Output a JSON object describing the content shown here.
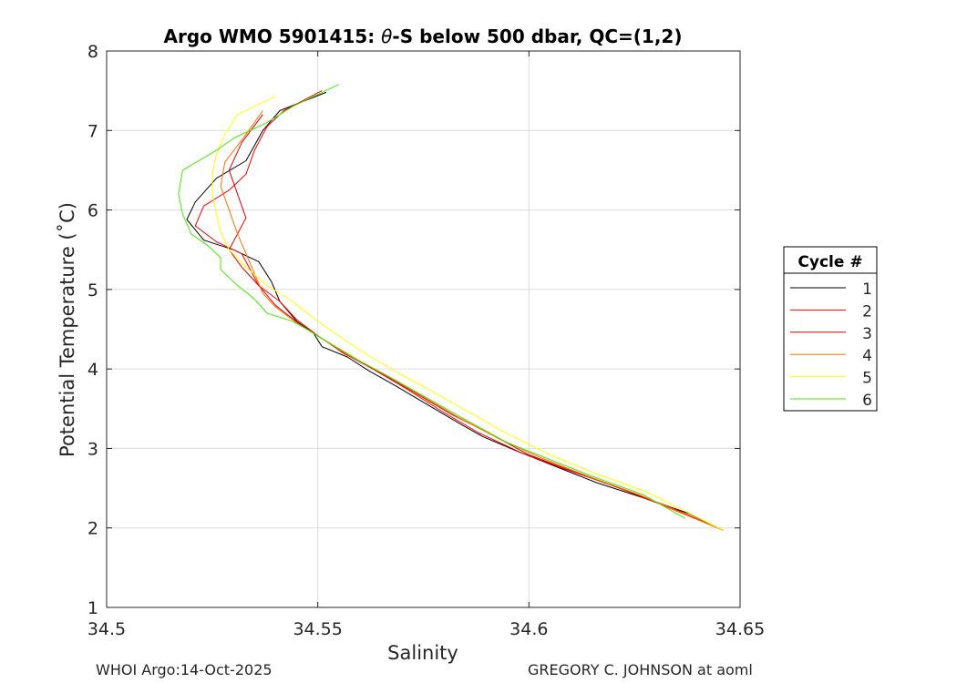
{
  "chart_data": {
    "type": "line",
    "title_prefix": "Argo WMO 5901415: ",
    "title_symbol": "θ",
    "title_suffix": "-S below 500 dbar,  QC=(1,2)",
    "xlabel": "Salinity",
    "ylabel": "Potential Temperature (˚C)",
    "xlim": [
      34.5,
      34.65
    ],
    "ylim": [
      1,
      8
    ],
    "xticks": [
      34.5,
      34.55,
      34.6,
      34.65
    ],
    "xtick_labels": [
      "34.5",
      "34.55",
      "34.6",
      "34.65"
    ],
    "yticks": [
      1,
      2,
      3,
      4,
      5,
      6,
      7,
      8
    ],
    "ytick_labels": [
      "1",
      "2",
      "3",
      "4",
      "5",
      "6",
      "7",
      "8"
    ],
    "grid": true,
    "legend_title": "Cycle #",
    "legend_position": "outside-right",
    "series": [
      {
        "name": "1",
        "color": "#000000",
        "points": [
          [
            34.552,
            7.48
          ],
          [
            34.541,
            7.25
          ],
          [
            34.537,
            7.0
          ],
          [
            34.533,
            6.62
          ],
          [
            34.526,
            6.4
          ],
          [
            34.521,
            6.1
          ],
          [
            34.519,
            5.88
          ],
          [
            34.523,
            5.62
          ],
          [
            34.53,
            5.5
          ],
          [
            34.536,
            5.35
          ],
          [
            34.539,
            5.1
          ],
          [
            34.541,
            4.85
          ],
          [
            34.545,
            4.6
          ],
          [
            34.549,
            4.45
          ],
          [
            34.551,
            4.28
          ],
          [
            34.557,
            4.15
          ],
          [
            34.562,
            3.98
          ],
          [
            34.568,
            3.8
          ],
          [
            34.576,
            3.55
          ],
          [
            34.584,
            3.3
          ],
          [
            34.589,
            3.15
          ],
          [
            34.597,
            2.97
          ],
          [
            34.606,
            2.78
          ],
          [
            34.616,
            2.57
          ],
          [
            34.627,
            2.38
          ],
          [
            34.638,
            2.18
          ],
          [
            34.646,
            1.97
          ]
        ]
      },
      {
        "name": "2",
        "color": "#ff0000",
        "points": [
          [
            34.551,
            7.5
          ],
          [
            34.542,
            7.25
          ],
          [
            34.538,
            7.05
          ],
          [
            34.535,
            6.75
          ],
          [
            34.533,
            6.45
          ],
          [
            34.529,
            6.25
          ],
          [
            34.523,
            6.05
          ],
          [
            34.521,
            5.8
          ],
          [
            34.526,
            5.6
          ],
          [
            34.532,
            5.45
          ],
          [
            34.534,
            5.25
          ],
          [
            34.536,
            5.05
          ],
          [
            34.541,
            4.85
          ],
          [
            34.545,
            4.62
          ],
          [
            34.55,
            4.42
          ],
          [
            34.556,
            4.2
          ],
          [
            34.563,
            4.0
          ],
          [
            34.571,
            3.75
          ],
          [
            34.579,
            3.48
          ],
          [
            34.588,
            3.2
          ],
          [
            34.598,
            2.95
          ],
          [
            34.608,
            2.75
          ],
          [
            34.619,
            2.55
          ],
          [
            34.631,
            2.3
          ],
          [
            34.646,
            1.97
          ]
        ]
      },
      {
        "name": "3",
        "color": "#dd0000",
        "points": [
          [
            34.537,
            7.2
          ],
          [
            34.532,
            6.85
          ],
          [
            34.529,
            6.5
          ],
          [
            34.531,
            6.2
          ],
          [
            34.533,
            5.9
          ],
          [
            34.531,
            5.7
          ],
          [
            34.529,
            5.5
          ],
          [
            34.532,
            5.28
          ],
          [
            34.536,
            5.05
          ],
          [
            34.54,
            4.8
          ],
          [
            34.546,
            4.55
          ],
          [
            34.551,
            4.38
          ],
          [
            34.557,
            4.18
          ],
          [
            34.565,
            3.95
          ],
          [
            34.573,
            3.7
          ],
          [
            34.582,
            3.42
          ],
          [
            34.591,
            3.18
          ],
          [
            34.6,
            2.92
          ],
          [
            34.611,
            2.7
          ],
          [
            34.623,
            2.47
          ],
          [
            34.634,
            2.25
          ],
          [
            34.646,
            1.97
          ]
        ]
      },
      {
        "name": "4",
        "color": "#ff7000",
        "points": [
          [
            34.537,
            7.25
          ],
          [
            34.533,
            6.95
          ],
          [
            34.528,
            6.6
          ],
          [
            34.527,
            6.3
          ],
          [
            34.529,
            6.0
          ],
          [
            34.531,
            5.7
          ],
          [
            34.533,
            5.45
          ],
          [
            34.535,
            5.2
          ],
          [
            34.537,
            4.95
          ],
          [
            34.54,
            4.78
          ],
          [
            34.545,
            4.58
          ],
          [
            34.551,
            4.38
          ],
          [
            34.558,
            4.15
          ],
          [
            34.566,
            3.93
          ],
          [
            34.574,
            3.68
          ],
          [
            34.583,
            3.4
          ],
          [
            34.593,
            3.12
          ],
          [
            34.603,
            2.88
          ],
          [
            34.614,
            2.65
          ],
          [
            34.626,
            2.42
          ],
          [
            34.646,
            1.97
          ]
        ]
      },
      {
        "name": "5",
        "color": "#ffff00",
        "points": [
          [
            34.54,
            7.43
          ],
          [
            34.531,
            7.2
          ],
          [
            34.528,
            6.95
          ],
          [
            34.526,
            6.7
          ],
          [
            34.525,
            6.45
          ],
          [
            34.525,
            6.2
          ],
          [
            34.526,
            5.95
          ],
          [
            34.527,
            5.72
          ],
          [
            34.529,
            5.5
          ],
          [
            34.533,
            5.28
          ],
          [
            34.538,
            5.05
          ],
          [
            34.544,
            4.85
          ],
          [
            34.55,
            4.6
          ],
          [
            34.556,
            4.38
          ],
          [
            34.562,
            4.17
          ],
          [
            34.569,
            3.95
          ],
          [
            34.577,
            3.72
          ],
          [
            34.586,
            3.45
          ],
          [
            34.595,
            3.18
          ],
          [
            34.605,
            2.92
          ],
          [
            34.616,
            2.68
          ],
          [
            34.628,
            2.45
          ],
          [
            34.646,
            1.97
          ]
        ]
      },
      {
        "name": "6",
        "color": "#44ee00",
        "points": [
          [
            34.555,
            7.58
          ],
          [
            34.544,
            7.3
          ],
          [
            34.538,
            7.1
          ],
          [
            34.53,
            6.9
          ],
          [
            34.526,
            6.75
          ],
          [
            34.518,
            6.5
          ],
          [
            34.517,
            6.2
          ],
          [
            34.518,
            5.95
          ],
          [
            34.52,
            5.7
          ],
          [
            34.524,
            5.55
          ],
          [
            34.527,
            5.4
          ],
          [
            34.527,
            5.25
          ],
          [
            34.531,
            5.05
          ],
          [
            34.535,
            4.88
          ],
          [
            34.538,
            4.7
          ],
          [
            34.544,
            4.6
          ],
          [
            34.548,
            4.48
          ],
          [
            34.553,
            4.32
          ],
          [
            34.56,
            4.1
          ],
          [
            34.568,
            3.87
          ],
          [
            34.577,
            3.6
          ],
          [
            34.586,
            3.33
          ],
          [
            34.595,
            3.07
          ],
          [
            34.604,
            2.88
          ],
          [
            34.615,
            2.65
          ],
          [
            34.627,
            2.42
          ],
          [
            34.637,
            2.12
          ]
        ]
      }
    ]
  },
  "footer": {
    "left": "WHOI Argo:14-Oct-2025",
    "right": "GREGORY C. JOHNSON at aoml"
  }
}
